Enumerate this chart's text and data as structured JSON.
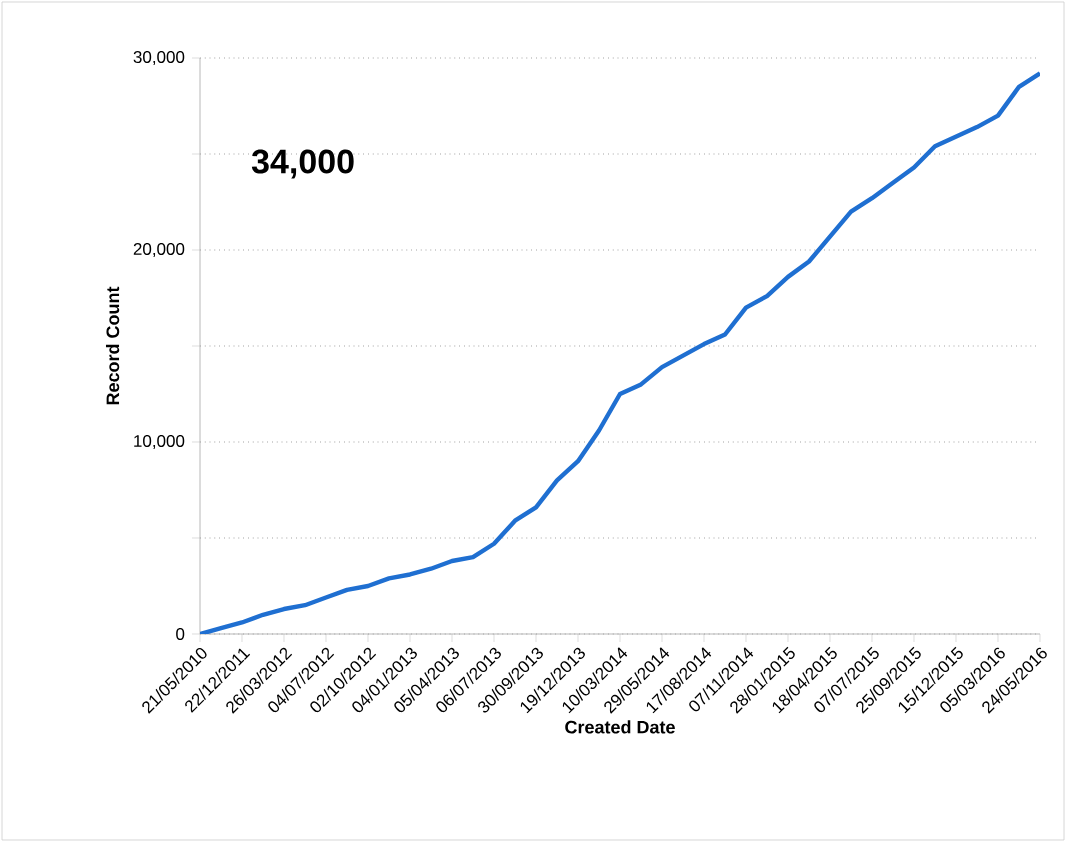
{
  "chart_data": {
    "type": "line",
    "xlabel": "Created Date",
    "ylabel": "Record Count",
    "categories": [
      "21/05/2010",
      null,
      "22/12/2011",
      null,
      "26/03/2012",
      null,
      "04/07/2012",
      null,
      "02/10/2012",
      null,
      "04/01/2013",
      null,
      "05/04/2013",
      null,
      "06/07/2013",
      null,
      "30/09/2013",
      null,
      "19/12/2013",
      null,
      "10/03/2014",
      null,
      "29/05/2014",
      null,
      "17/08/2014",
      null,
      "07/11/2014",
      null,
      "28/01/2015",
      null,
      "18/04/2015",
      null,
      "07/07/2015",
      null,
      "25/09/2015",
      null,
      "15/12/2015",
      null,
      "05/03/2016",
      null,
      "24/05/2016"
    ],
    "series": [
      {
        "color": "#1f6fd1",
        "values": [
          0,
          300,
          600,
          1000,
          1300,
          1500,
          1900,
          2300,
          2500,
          2900,
          3100,
          3400,
          3800,
          4000,
          4700,
          5900,
          6600,
          8000,
          9000,
          10600,
          12500,
          13000,
          13900,
          14500,
          15100,
          15600,
          17000,
          17600,
          18600,
          19400,
          20700,
          22000,
          22700,
          23500,
          24300,
          25400,
          25900,
          26400,
          27000,
          28500,
          29200
        ]
      }
    ],
    "ylim": [
      0,
      30000
    ],
    "yticks": [
      {
        "value": 0,
        "label": "0"
      },
      {
        "value": 5000,
        "label": null
      },
      {
        "value": 10000,
        "label": "10,000"
      },
      {
        "value": 15000,
        "label": null
      },
      {
        "value": 20000,
        "label": "20,000"
      },
      {
        "value": 25000,
        "label": null
      },
      {
        "value": 30000,
        "label": "30,000"
      }
    ],
    "grid": "y",
    "marker": "none",
    "line_style": "solid",
    "annotations": [
      "34,000"
    ]
  }
}
